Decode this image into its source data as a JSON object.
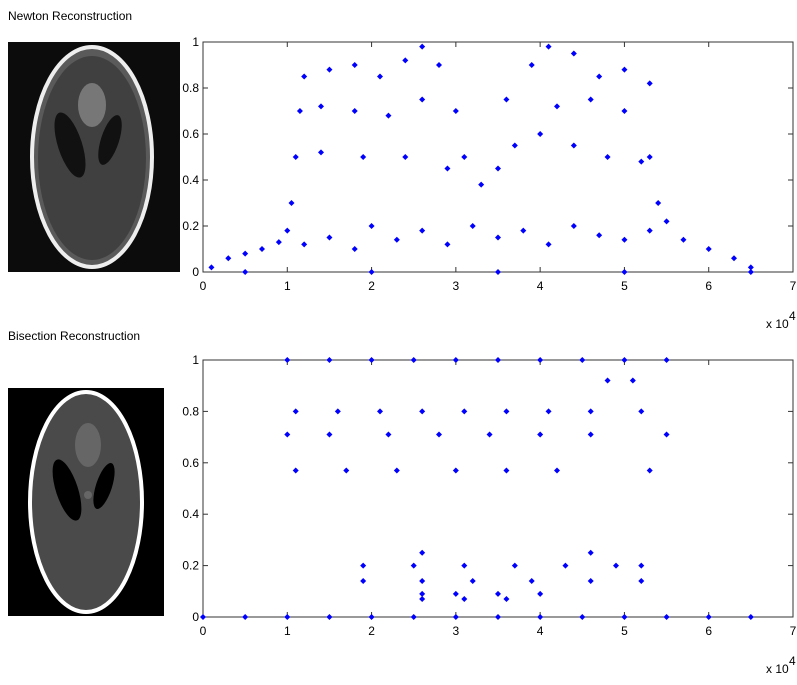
{
  "chart_data": [
    {
      "type": "scatter",
      "title": "Newton Reconstruction",
      "color": "#0000ff",
      "xlim": [
        0,
        7
      ],
      "xticks": [
        0,
        1,
        2,
        3,
        4,
        5,
        6,
        7
      ],
      "ylim": [
        0,
        1
      ],
      "yticks": [
        0,
        0.2,
        0.4,
        0.6,
        0.8,
        1
      ],
      "x_scale_base": "x 10",
      "x_scale_exponent": "4",
      "x": [
        0.1,
        0.3,
        0.5,
        0.7,
        0.9,
        1.0,
        1.2,
        1.5,
        1.8,
        2.0,
        2.3,
        2.6,
        2.9,
        3.2,
        3.5,
        3.8,
        4.1,
        4.4,
        4.7,
        5.0,
        5.3,
        5.5,
        5.7,
        6.0,
        6.3,
        6.5,
        0.5,
        2.0,
        3.5,
        5.0,
        6.5,
        1.05,
        1.1,
        1.15,
        1.2,
        1.5,
        1.8,
        2.1,
        2.4,
        2.6,
        2.8,
        1.4,
        1.8,
        2.2,
        2.6,
        1.4,
        1.9,
        2.4,
        2.9,
        3.0,
        3.1,
        3.3,
        3.5,
        3.7,
        3.6,
        3.9,
        4.1,
        4.4,
        4.7,
        5.0,
        5.3,
        4.0,
        4.4,
        4.8,
        5.2,
        4.2,
        4.6,
        5.0,
        5.3,
        5.4
      ],
      "values": [
        0.02,
        0.06,
        0.08,
        0.1,
        0.13,
        0.18,
        0.12,
        0.15,
        0.1,
        0.2,
        0.14,
        0.18,
        0.12,
        0.2,
        0.15,
        0.18,
        0.12,
        0.2,
        0.16,
        0.14,
        0.18,
        0.22,
        0.14,
        0.1,
        0.06,
        0.02,
        0,
        0,
        0,
        0,
        0,
        0.3,
        0.5,
        0.7,
        0.85,
        0.88,
        0.9,
        0.85,
        0.92,
        0.98,
        0.9,
        0.72,
        0.7,
        0.68,
        0.75,
        0.52,
        0.5,
        0.5,
        0.45,
        0.7,
        0.5,
        0.38,
        0.45,
        0.55,
        0.75,
        0.9,
        0.98,
        0.95,
        0.85,
        0.88,
        0.82,
        0.6,
        0.55,
        0.5,
        0.48,
        0.72,
        0.75,
        0.7,
        0.5,
        0.3
      ]
    },
    {
      "type": "scatter",
      "title": "Bisection Reconstruction",
      "color": "#0000ff",
      "xlim": [
        0,
        7
      ],
      "xticks": [
        0,
        1,
        2,
        3,
        4,
        5,
        6,
        7
      ],
      "ylim": [
        0,
        1
      ],
      "yticks": [
        0,
        0.2,
        0.4,
        0.6,
        0.8,
        1
      ],
      "x_scale_base": "x 10",
      "x_scale_exponent": "4",
      "x": [
        0,
        0.5,
        1,
        1.5,
        2,
        2.5,
        3,
        3.5,
        4,
        4.5,
        5,
        5.5,
        6,
        6.5,
        1.0,
        1.5,
        2.0,
        2.5,
        3.0,
        3.5,
        4.0,
        4.5,
        5.0,
        5.5,
        1.1,
        1.6,
        2.1,
        2.6,
        3.1,
        3.6,
        4.1,
        4.6,
        5.2,
        1.0,
        1.5,
        2.2,
        2.8,
        3.4,
        4.0,
        4.6,
        5.5,
        1.1,
        1.7,
        2.3,
        3.0,
        3.6,
        4.2,
        5.3,
        4.8,
        5.1,
        1.9,
        2.5,
        3.1,
        3.7,
        4.3,
        4.9,
        5.2,
        1.9,
        2.6,
        3.2,
        3.9,
        4.6,
        5.2,
        2.6,
        3.0,
        3.5,
        4.0,
        2.6,
        3.1,
        3.6,
        2.6,
        4.6
      ],
      "values": [
        0,
        0,
        0,
        0,
        0,
        0,
        0,
        0,
        0,
        0,
        0,
        0,
        0,
        0,
        1,
        1,
        1,
        1,
        1,
        1,
        1,
        1,
        1,
        1,
        0.8,
        0.8,
        0.8,
        0.8,
        0.8,
        0.8,
        0.8,
        0.8,
        0.8,
        0.71,
        0.71,
        0.71,
        0.71,
        0.71,
        0.71,
        0.71,
        0.71,
        0.57,
        0.57,
        0.57,
        0.57,
        0.57,
        0.57,
        0.57,
        0.92,
        0.92,
        0.2,
        0.2,
        0.2,
        0.2,
        0.2,
        0.2,
        0.2,
        0.14,
        0.14,
        0.14,
        0.14,
        0.14,
        0.14,
        0.09,
        0.09,
        0.09,
        0.09,
        0.07,
        0.07,
        0.07,
        0.25,
        0.25
      ]
    }
  ]
}
